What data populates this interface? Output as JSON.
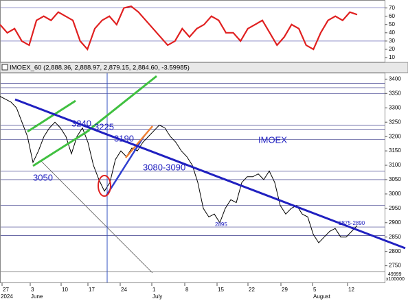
{
  "chart_data": [
    {
      "type": "line",
      "name": "RSI",
      "color": "#e02020",
      "values": [
        50,
        40,
        45,
        30,
        25,
        55,
        60,
        55,
        65,
        60,
        55,
        30,
        20,
        45,
        55,
        60,
        50,
        70,
        72,
        65,
        55,
        45,
        35,
        25,
        30,
        45,
        35,
        45,
        50,
        60,
        55,
        40,
        40,
        30,
        45,
        50,
        55,
        40,
        25,
        35,
        50,
        45,
        25,
        20,
        40,
        55,
        60,
        55,
        65,
        62
      ],
      "ylim": [
        5,
        78
      ],
      "yticks": [
        10,
        20,
        30,
        40,
        50,
        60,
        70
      ],
      "levels": [
        30,
        70
      ]
    },
    {
      "type": "line",
      "header": "IMOEX_60 (2,888.36, 2,888.97, 2,879.15, 2,884.60, -3.59985)",
      "color": "#000000",
      "values": [
        3340,
        3330,
        3320,
        3300,
        3250,
        3200,
        3110,
        3150,
        3200,
        3230,
        3250,
        3230,
        3200,
        3140,
        3200,
        3230,
        3180,
        3100,
        3050,
        3010,
        3040,
        3120,
        3150,
        3130,
        3160,
        3150,
        3180,
        3200,
        3220,
        3240,
        3230,
        3200,
        3180,
        3150,
        3130,
        3100,
        3040,
        2950,
        2920,
        2930,
        2900,
        2950,
        2980,
        2970,
        3040,
        3060,
        3060,
        3070,
        3050,
        3080,
        3040,
        2960,
        2930,
        2950,
        2960,
        2930,
        2920,
        2860,
        2830,
        2850,
        2870,
        2880,
        2850,
        2850,
        2870,
        2890
      ],
      "ylim": [
        2730,
        3420
      ],
      "yticks": [
        2750,
        2800,
        2850,
        2900,
        2950,
        3000,
        3050,
        3100,
        3150,
        3200,
        3250,
        3300,
        3350,
        3400
      ],
      "levels": [
        3385,
        3370,
        3350,
        3240,
        3225,
        3190,
        3080,
        3050,
        2960,
        2885,
        2855
      ],
      "annotations": [
        "3240",
        "3225",
        "3190",
        "3080-3090",
        "3050",
        "IMOEX",
        "2875-2890",
        "2895"
      ],
      "volume_label": "49999",
      "volume_unit": "x100000",
      "date_labels": [
        "27",
        "3",
        "10",
        "17",
        "24",
        "1",
        "8",
        "15",
        "22",
        "29",
        "5",
        "12"
      ],
      "period_labels": [
        "2024",
        "June",
        "July",
        "August"
      ]
    }
  ]
}
